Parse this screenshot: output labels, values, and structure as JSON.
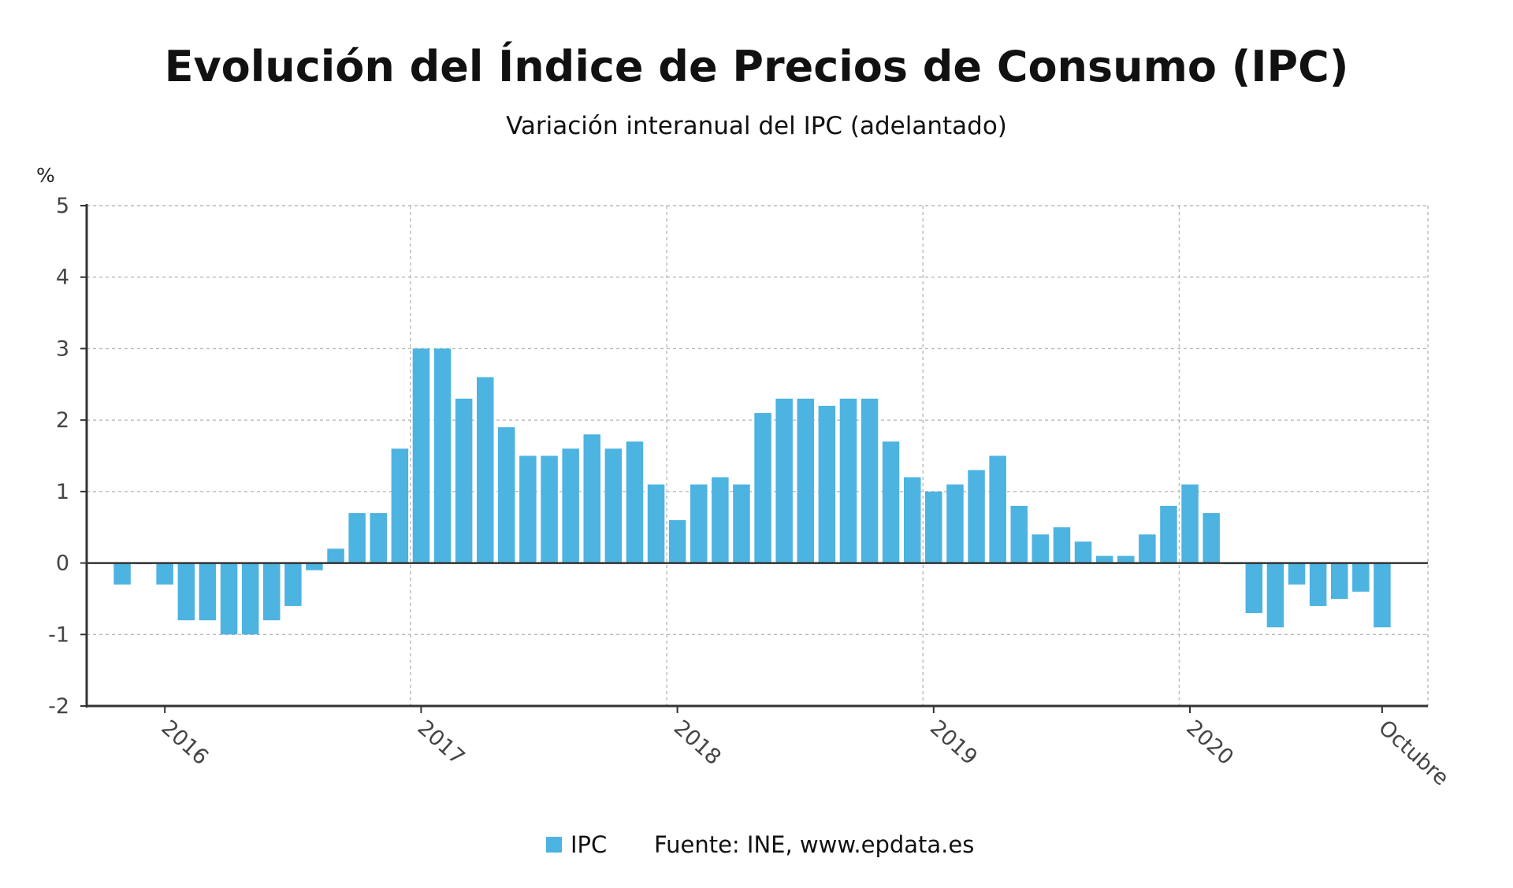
{
  "chart_data": {
    "type": "bar",
    "title": "Evolución del Índice de Precios de Consumo (IPC)",
    "subtitle": "Variación interanual del IPC (adelantado)",
    "ylabel": "%",
    "ylim": [
      -2,
      5
    ],
    "yticks": [
      5,
      4,
      3,
      2,
      1,
      0,
      -1,
      -2
    ],
    "grid": true,
    "bar_color": "#4db3e0",
    "x_start": "2015-11",
    "x_end": "2020-10",
    "xticks": [
      {
        "label": "2016",
        "x": "2016-01"
      },
      {
        "label": "2017",
        "x": "2017-01"
      },
      {
        "label": "2018",
        "x": "2018-01"
      },
      {
        "label": "2019",
        "x": "2019-01"
      },
      {
        "label": "2020",
        "x": "2020-01"
      },
      {
        "label": "Octubre",
        "x": "2020-10"
      }
    ],
    "series": [
      {
        "name": "IPC",
        "values": [
          -0.3,
          0.0,
          -0.3,
          -0.8,
          -0.8,
          -1.0,
          -1.0,
          -0.8,
          -0.6,
          -0.1,
          0.2,
          0.7,
          0.7,
          1.6,
          3.0,
          3.0,
          2.3,
          2.6,
          1.9,
          1.5,
          1.5,
          1.6,
          1.8,
          1.6,
          1.7,
          1.1,
          0.6,
          1.1,
          1.2,
          1.1,
          2.1,
          2.3,
          2.3,
          2.2,
          2.3,
          2.3,
          1.7,
          1.2,
          1.0,
          1.1,
          1.3,
          1.5,
          0.8,
          0.4,
          0.5,
          0.3,
          0.1,
          0.1,
          0.4,
          0.8,
          1.1,
          0.7,
          0.0,
          -0.7,
          -0.9,
          -0.3,
          -0.6,
          -0.5,
          -0.4,
          -0.9
        ]
      }
    ],
    "legend": {
      "label": "IPC",
      "placement": "bottom"
    },
    "source": "Fuente: INE, www.epdata.es"
  }
}
